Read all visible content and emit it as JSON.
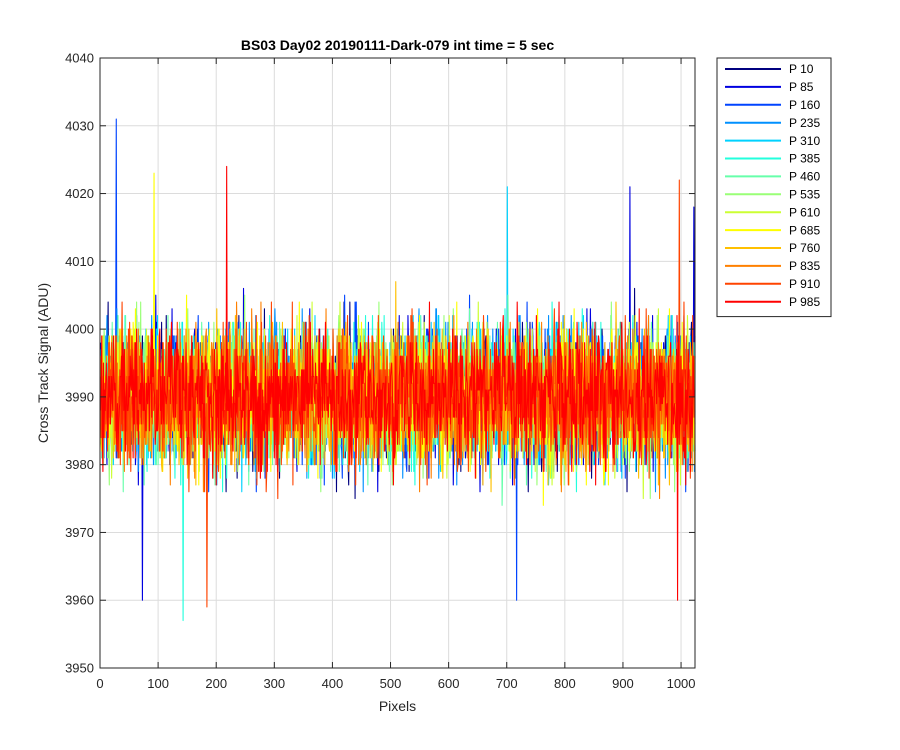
{
  "chart_data": {
    "type": "line",
    "title": "BS03 Day02 20190111-Dark-079 int time = 5 sec",
    "xlabel": "Pixels",
    "ylabel": "Cross Track Signal (ADU)",
    "xlim": [
      0,
      1024
    ],
    "ylim": [
      3950,
      4040
    ],
    "xticks": [
      0,
      100,
      200,
      300,
      400,
      500,
      600,
      700,
      800,
      900,
      1000
    ],
    "yticks": [
      3950,
      3960,
      3970,
      3980,
      3990,
      4000,
      4010,
      4020,
      4030,
      4040
    ],
    "grid": true,
    "legend_position": "outside-top-right",
    "signal_mean": 3990,
    "signal_spread": 8,
    "series": [
      {
        "name": "P 10",
        "color": "#00007f"
      },
      {
        "name": "P 85",
        "color": "#0000e0"
      },
      {
        "name": "P 160",
        "color": "#0044ff"
      },
      {
        "name": "P 235",
        "color": "#0090ff"
      },
      {
        "name": "P 310",
        "color": "#00d2ff"
      },
      {
        "name": "P 385",
        "color": "#22ffdd"
      },
      {
        "name": "P 460",
        "color": "#66ffaa"
      },
      {
        "name": "P 535",
        "color": "#99ff77"
      },
      {
        "name": "P 610",
        "color": "#ccff33"
      },
      {
        "name": "P 685",
        "color": "#ffff00"
      },
      {
        "name": "P 760",
        "color": "#ffc000"
      },
      {
        "name": "P 835",
        "color": "#ff8000"
      },
      {
        "name": "P 910",
        "color": "#ff4400"
      },
      {
        "name": "P 985",
        "color": "#ff0000"
      }
    ],
    "annotated_extremes": [
      {
        "series": "P 160",
        "x": 27,
        "y": 4031
      },
      {
        "series": "P 385",
        "x": 142,
        "y": 3957
      },
      {
        "series": "P 910",
        "x": 183,
        "y": 3959
      },
      {
        "series": "P 985",
        "x": 217,
        "y": 4024
      },
      {
        "series": "P 685",
        "x": 92,
        "y": 4023
      },
      {
        "series": "P 85",
        "x": 72,
        "y": 3960
      },
      {
        "series": "P 310",
        "x": 700,
        "y": 4021
      },
      {
        "series": "P 160",
        "x": 716,
        "y": 3960
      },
      {
        "series": "P 85",
        "x": 911,
        "y": 4021
      },
      {
        "series": "P 985",
        "x": 993,
        "y": 3960
      },
      {
        "series": "P 910",
        "x": 996,
        "y": 4022
      },
      {
        "series": "P 85",
        "x": 1021,
        "y": 4018
      }
    ]
  }
}
